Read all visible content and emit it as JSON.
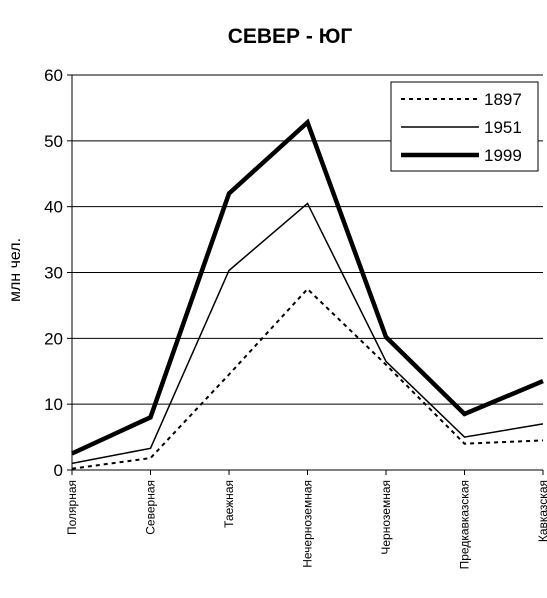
{
  "chart_data": {
    "type": "line",
    "title": "СЕВЕР - ЮГ",
    "xlabel": "",
    "ylabel": "млн чел.",
    "categories": [
      "Полярная",
      "Северная",
      "Таежная",
      "Нечерноземная",
      "Черноземная",
      "Предкавказская",
      "Кавказская"
    ],
    "ylim": [
      0,
      60
    ],
    "yticks": [
      "0",
      "10",
      "20",
      "30",
      "40",
      "50",
      "60"
    ],
    "grid": true,
    "legend_position": "top-right",
    "series": [
      {
        "name": "1897",
        "values": [
          0.2,
          1.8,
          14.5,
          27.5,
          16.0,
          4.0,
          4.5
        ],
        "style": "dashed",
        "color": "#000000"
      },
      {
        "name": "1951",
        "values": [
          1.0,
          3.3,
          30.3,
          40.5,
          16.5,
          5.0,
          7.0
        ],
        "style": "thin",
        "color": "#000000"
      },
      {
        "name": "1999",
        "values": [
          2.5,
          8.0,
          42.0,
          52.8,
          20.2,
          8.5,
          13.5
        ],
        "style": "bold",
        "color": "#000000"
      }
    ]
  }
}
